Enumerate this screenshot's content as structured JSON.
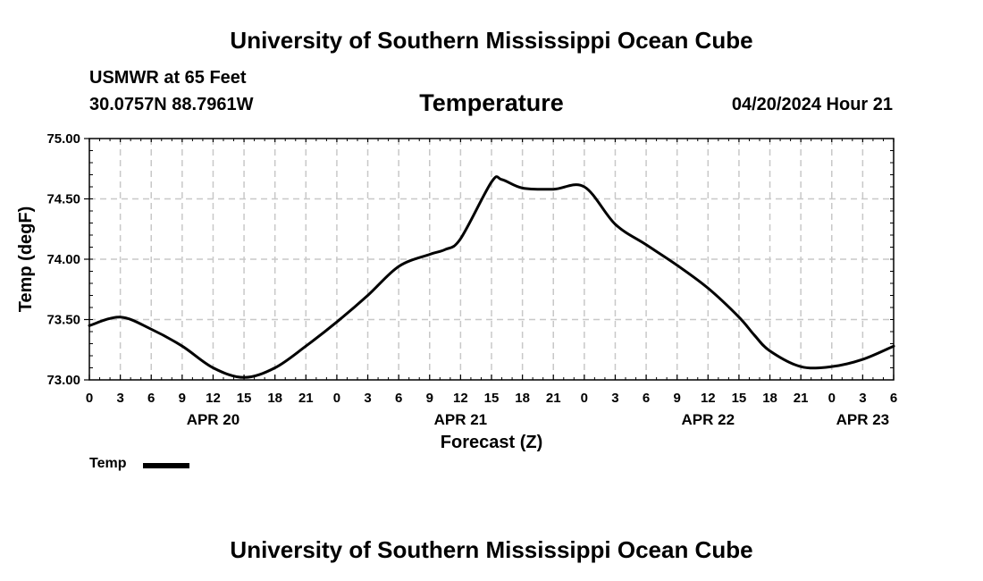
{
  "header": {
    "title": "University of Southern Mississippi Ocean Cube",
    "station": "USMWR at 65 Feet",
    "coords": "30.0757N  88.7961W",
    "chart_title": "Temperature",
    "datetime": "04/20/2024 Hour 21"
  },
  "footer": {
    "title": "University of Southern Mississippi Ocean Cube"
  },
  "legend": {
    "label": "Temp"
  },
  "colors": {
    "line": "#000000",
    "grid": "#c8c8c8",
    "frame": "#000000"
  },
  "chart_data": {
    "type": "line",
    "title": "Temperature",
    "xlabel": "Forecast (Z)",
    "ylabel": "Temp (degF)",
    "ylim": [
      73.0,
      75.0
    ],
    "xlim": [
      0,
      78
    ],
    "y_ticks": [
      "73.00",
      "73.50",
      "74.00",
      "74.50",
      "75.00"
    ],
    "x_tick_labels": [
      "0",
      "3",
      "6",
      "9",
      "12",
      "15",
      "18",
      "21",
      "0",
      "3",
      "6",
      "9",
      "12",
      "15",
      "18",
      "21",
      "0",
      "3",
      "6",
      "9",
      "12",
      "15",
      "18",
      "21",
      "0",
      "3",
      "6"
    ],
    "date_labels": [
      {
        "label": "APR 20",
        "x_hours": 12
      },
      {
        "label": "APR 21",
        "x_hours": 36
      },
      {
        "label": "APR 22",
        "x_hours": 60
      },
      {
        "label": "APR 23",
        "x_hours": 75
      }
    ],
    "grid": true,
    "series": [
      {
        "name": "Temp",
        "x": [
          0,
          3,
          6,
          9,
          12,
          15,
          18,
          21,
          24,
          27,
          30,
          33,
          34.5,
          36,
          39,
          40,
          42,
          45,
          48,
          51,
          54,
          57,
          60,
          63,
          64.5,
          66,
          69,
          72,
          75,
          78
        ],
        "values": [
          73.45,
          73.52,
          73.42,
          73.28,
          73.1,
          73.02,
          73.1,
          73.28,
          73.48,
          73.7,
          73.94,
          74.04,
          74.08,
          74.17,
          74.64,
          74.66,
          74.59,
          74.58,
          74.6,
          74.29,
          74.12,
          73.95,
          73.76,
          73.52,
          73.37,
          73.24,
          73.11,
          73.11,
          73.17,
          73.28
        ]
      }
    ]
  }
}
